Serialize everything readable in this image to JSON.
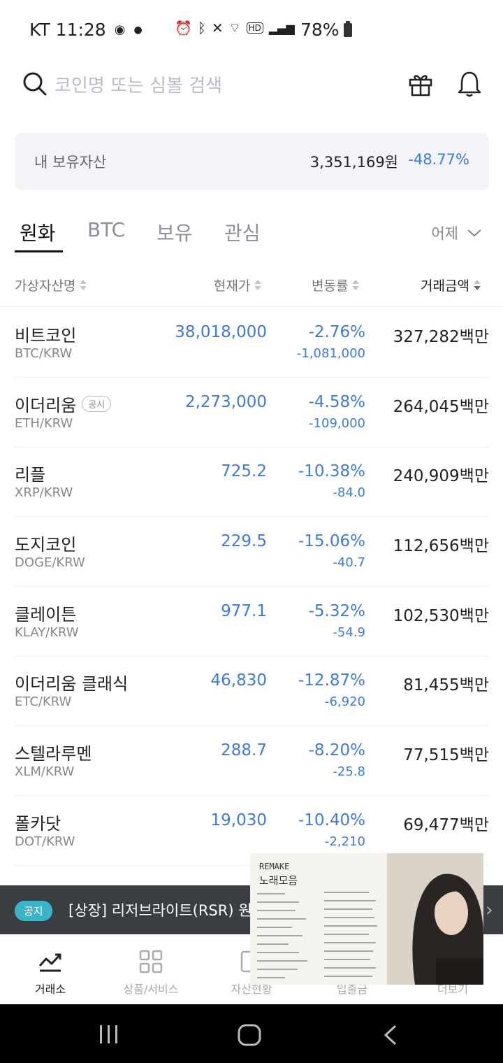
{
  "status_bar": {
    "carrier_time": "KT 11:28",
    "battery": "78%"
  },
  "search": {
    "placeholder": "코인명 또는 심볼 검색"
  },
  "assets": {
    "label": "내 보유자산",
    "value": "3,351,169원",
    "rate": "-48.77%"
  },
  "tabs": [
    {
      "label": "원화",
      "active": true
    },
    {
      "label": "BTC",
      "active": false
    },
    {
      "label": "보유",
      "active": false
    },
    {
      "label": "관심",
      "active": false
    }
  ],
  "period": "어제",
  "columns": {
    "name": "가상자산명",
    "price": "현재가",
    "change": "변동률",
    "volume": "거래금액"
  },
  "coins": [
    {
      "name": "비트코인",
      "symbol": "BTC/KRW",
      "price": "38,018,000",
      "rate": "-2.76%",
      "diff": "-1,081,000",
      "volume": "327,282백만"
    },
    {
      "name": "이더리움",
      "badge": "공시",
      "symbol": "ETH/KRW",
      "price": "2,273,000",
      "rate": "-4.58%",
      "diff": "-109,000",
      "volume": "264,045백만"
    },
    {
      "name": "리플",
      "symbol": "XRP/KRW",
      "price": "725.2",
      "rate": "-10.38%",
      "diff": "-84.0",
      "volume": "240,909백만"
    },
    {
      "name": "도지코인",
      "symbol": "DOGE/KRW",
      "price": "229.5",
      "rate": "-15.06%",
      "diff": "-40.7",
      "volume": "112,656백만"
    },
    {
      "name": "클레이튼",
      "symbol": "KLAY/KRW",
      "price": "977.1",
      "rate": "-5.32%",
      "diff": "-54.9",
      "volume": "102,530백만"
    },
    {
      "name": "이더리움 클래식",
      "symbol": "ETC/KRW",
      "price": "46,830",
      "rate": "-12.87%",
      "diff": "-6,920",
      "volume": "81,455백만"
    },
    {
      "name": "스텔라루멘",
      "symbol": "XLM/KRW",
      "price": "288.7",
      "rate": "-8.20%",
      "diff": "-25.8",
      "volume": "77,515백만"
    },
    {
      "name": "폴카닷",
      "symbol": "DOT/KRW",
      "price": "19,030",
      "rate": "-10.40%",
      "diff": "-2,210",
      "volume": "69,477백만"
    }
  ],
  "ticker": {
    "badge": "공지",
    "text": "[상장] 리저브라이트(RSR) 원화"
  },
  "nav": [
    {
      "label": "거래소",
      "active": true
    },
    {
      "label": "상품/서비스",
      "active": false
    },
    {
      "label": "자산현황",
      "active": false
    },
    {
      "label": "입출금",
      "active": false
    },
    {
      "label": "더보기",
      "active": false
    }
  ],
  "pip": {
    "title": "REMAKE",
    "subtitle": "노래모음"
  },
  "colors": {
    "down_blue": "#3f7ad7",
    "ticker_bg": "#3a3d41",
    "badge_teal": "#3cb4c8"
  }
}
